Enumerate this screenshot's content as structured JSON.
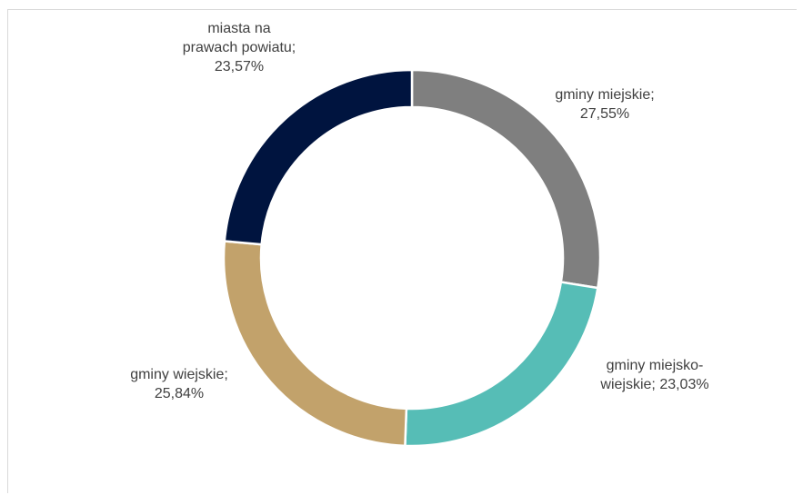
{
  "chart_data": {
    "type": "pie",
    "variant": "donut",
    "title": "",
    "legend": "none",
    "slices": [
      {
        "label": "gminy miejskie",
        "value": 27.55,
        "value_text": "27,55%",
        "color": "#7f7f7f"
      },
      {
        "label": "gminy miejsko-wiejskie",
        "value": 23.03,
        "value_text": "23,03%",
        "color": "#56bdb6"
      },
      {
        "label": "gminy wiejskie",
        "value": 25.84,
        "value_text": "25,84%",
        "color": "#c2a26b"
      },
      {
        "label": "miasta na prawach powiatu",
        "value": 23.57,
        "value_text": "23,57%",
        "color": "#00143f"
      }
    ],
    "labels": {
      "gminy_miejskie": [
        "gminy miejskie;",
        "27,55%"
      ],
      "gminy_miejsko_wiejskie": [
        "gminy miejsko-",
        "wiejskie; 23,03%"
      ],
      "gminy_wiejskie": [
        "gminy wiejskie;",
        "25,84%"
      ],
      "miasta": [
        "miasta na",
        "prawach powiatu;",
        "23,57%"
      ]
    }
  }
}
